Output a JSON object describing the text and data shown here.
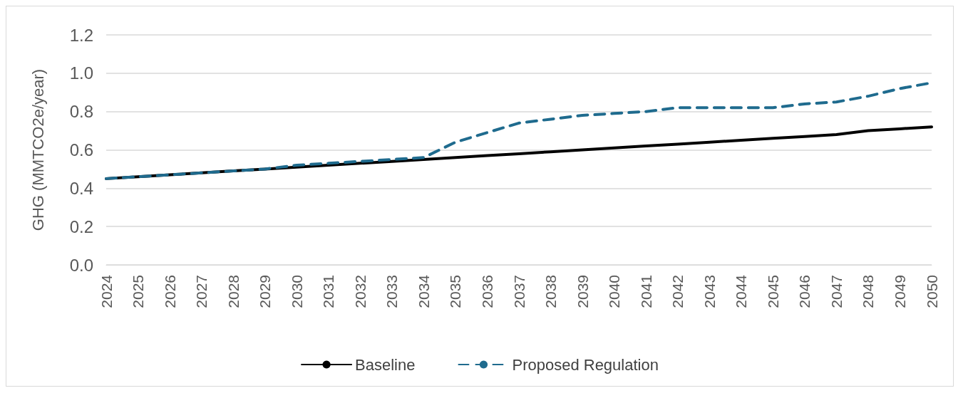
{
  "chart_data": {
    "type": "line",
    "ylabel": "GHG (MMTCO2e/year)",
    "categories": [
      "2024",
      "2025",
      "2026",
      "2027",
      "2028",
      "2029",
      "2030",
      "2031",
      "2032",
      "2033",
      "2034",
      "2035",
      "2036",
      "2037",
      "2038",
      "2039",
      "2040",
      "2041",
      "2042",
      "2043",
      "2044",
      "2045",
      "2046",
      "2047",
      "2048",
      "2049",
      "2050"
    ],
    "series": [
      {
        "name": "Baseline",
        "color": "#000000",
        "line_style": "solid",
        "values": [
          0.45,
          0.46,
          0.47,
          0.48,
          0.49,
          0.5,
          0.51,
          0.52,
          0.53,
          0.54,
          0.55,
          0.56,
          0.57,
          0.58,
          0.59,
          0.6,
          0.61,
          0.62,
          0.63,
          0.64,
          0.65,
          0.66,
          0.67,
          0.68,
          0.7,
          0.71,
          0.72
        ]
      },
      {
        "name": "Proposed Regulation",
        "color": "#1f6b8e",
        "line_style": "dashed",
        "values": [
          0.45,
          0.46,
          0.47,
          0.48,
          0.49,
          0.5,
          0.52,
          0.53,
          0.54,
          0.55,
          0.56,
          0.64,
          0.69,
          0.74,
          0.76,
          0.78,
          0.79,
          0.8,
          0.82,
          0.82,
          0.82,
          0.82,
          0.84,
          0.85,
          0.88,
          0.92,
          0.95
        ]
      }
    ],
    "ylim": [
      0,
      1.2
    ],
    "yticks": [
      {
        "value": 0,
        "label": "0.0"
      },
      0.2,
      0.4,
      0.6,
      0.8,
      {
        "value": 1,
        "label": "1.0"
      },
      1.2
    ],
    "grid": "y",
    "legend": "bottom",
    "marker": "none"
  }
}
